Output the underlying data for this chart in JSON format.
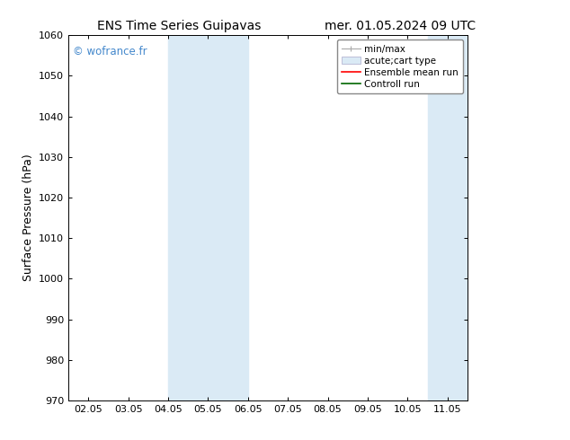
{
  "title_left": "ENS Time Series Guipavas",
  "title_right": "mer. 01.05.2024 09 UTC",
  "ylabel": "Surface Pressure (hPa)",
  "ylim": [
    970,
    1060
  ],
  "yticks": [
    970,
    980,
    990,
    1000,
    1010,
    1020,
    1030,
    1040,
    1050,
    1060
  ],
  "xtick_labels": [
    "02.05",
    "03.05",
    "04.05",
    "05.05",
    "06.05",
    "07.05",
    "08.05",
    "09.05",
    "10.05",
    "11.05"
  ],
  "xtick_positions": [
    0,
    1,
    2,
    3,
    4,
    5,
    6,
    7,
    8,
    9
  ],
  "xlim": [
    -0.5,
    9.5
  ],
  "shaded_bands": [
    {
      "x_start": 2.0,
      "x_end": 4.0
    },
    {
      "x_start": 8.5,
      "x_end": 9.5
    }
  ],
  "band_color": "#daeaf5",
  "watermark": "© wofrance.fr",
  "watermark_color": "#4488cc",
  "bg_color": "#ffffff",
  "spine_color": "#000000",
  "tick_color": "#000000",
  "font_family": "DejaVu Sans",
  "title_fontsize": 10,
  "tick_fontsize": 8,
  "label_fontsize": 9,
  "legend_fontsize": 7.5,
  "minmax_color": "#aaaaaa",
  "band_legend_color": "#daeaf5",
  "ensemble_color": "#ff0000",
  "control_color": "#006600"
}
